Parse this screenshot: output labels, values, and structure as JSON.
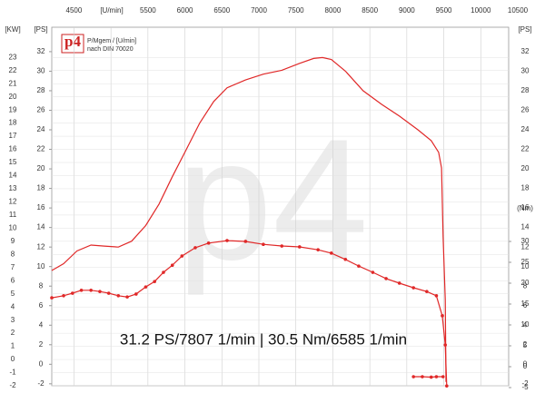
{
  "chart_data": {
    "type": "line",
    "logo": "p4",
    "watermark": "p4",
    "legend_lines": [
      "P/Mgem / [U/min]",
      "nach DIN 70020"
    ],
    "annotation": "31.2 PS/7807 1/min | 30.5 Nm/6585 1/min",
    "xlabel": "[U/min]",
    "ylabel": "[PS]",
    "y2label": "(Nm)",
    "kwlabel": "[KW]",
    "xlim": [
      4200,
      10500
    ],
    "xticks": [
      4500,
      5500,
      6000,
      6500,
      7000,
      7500,
      8000,
      8500,
      9000,
      9500,
      10000,
      10500
    ],
    "gridx": [
      4500,
      5000,
      5500,
      6000,
      6500,
      7000,
      7500,
      8000,
      8500,
      9000,
      9500,
      10000
    ],
    "ylim": [
      -2.2,
      34.5
    ],
    "yticks": [
      -2,
      0,
      2,
      4,
      6,
      8,
      10,
      12,
      14,
      16,
      18,
      20,
      22,
      24,
      26,
      28,
      30,
      32
    ],
    "kwlim": [
      -2,
      25.3
    ],
    "kwticks": [
      -2,
      -1,
      0,
      1,
      2,
      3,
      4,
      5,
      6,
      7,
      8,
      9,
      10,
      11,
      12,
      13,
      14,
      15,
      16,
      17,
      18,
      19,
      20,
      21,
      22,
      23
    ],
    "y2lim": [
      -4.57,
      81.3
    ],
    "y2ticks": [
      -5,
      0,
      5,
      10,
      15,
      20,
      25,
      30
    ],
    "grid": true,
    "series": [
      {
        "name": "PS",
        "color": "#e02828",
        "markers": false,
        "x": [
          4200,
          4360,
          4540,
          4730,
          4910,
          5100,
          5280,
          5470,
          5650,
          5830,
          6020,
          6200,
          6390,
          6570,
          6820,
          7060,
          7310,
          7550,
          7740,
          7860,
          7980,
          8170,
          8410,
          8660,
          8900,
          9150,
          9330,
          9430,
          9470,
          9490,
          9520,
          9530
        ],
        "values": [
          9.6,
          10.3,
          11.6,
          12.2,
          12.1,
          12.0,
          12.6,
          14.2,
          16.4,
          19.2,
          22.0,
          24.7,
          26.9,
          28.3,
          29.1,
          29.7,
          30.1,
          30.8,
          31.3,
          31.4,
          31.2,
          30.0,
          28.0,
          26.6,
          25.4,
          24.0,
          22.9,
          21.7,
          20.1,
          13.1,
          6.6,
          -1.8
        ]
      },
      {
        "name": "Nm",
        "color": "#e02828",
        "axis": "y2",
        "markers": true,
        "x": [
          4200,
          4360,
          4480,
          4600,
          4730,
          4850,
          4970,
          5100,
          5220,
          5340,
          5470,
          5590,
          5710,
          5830,
          5960,
          6140,
          6320,
          6570,
          6820,
          7060,
          7310,
          7550,
          7800,
          7980,
          8170,
          8350,
          8540,
          8720,
          8900,
          9090,
          9270,
          9400,
          9480,
          9520,
          9540,
          null,
          9090,
          9210,
          9330,
          9400,
          9490
        ],
        "values": [
          16.5,
          17.0,
          17.6,
          18.3,
          18.3,
          18.0,
          17.6,
          17.0,
          16.7,
          17.4,
          19.1,
          20.4,
          22.6,
          24.3,
          26.5,
          28.5,
          29.6,
          30.2,
          30.0,
          29.3,
          28.9,
          28.7,
          28.0,
          27.2,
          25.7,
          24.1,
          22.6,
          21.1,
          20.0,
          18.9,
          18.0,
          17.0,
          12.2,
          5.2,
          -4.6,
          null,
          -2.4,
          -2.4,
          -2.5,
          -2.4,
          -2.4
        ]
      }
    ]
  }
}
